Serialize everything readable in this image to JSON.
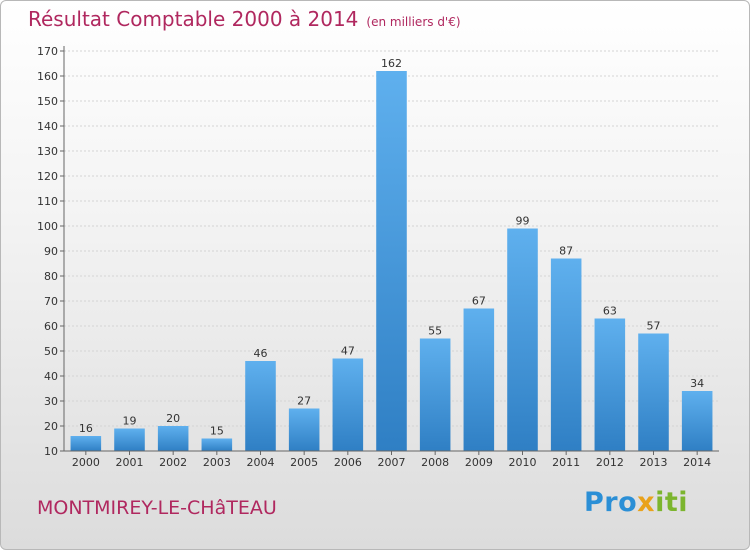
{
  "colors": {
    "title": "#b0285f",
    "bar_top": "#5fb0ee",
    "bar_bottom": "#2f7fc4"
  },
  "brand": {
    "logo_text": "Proxiti"
  },
  "chart_data": {
    "type": "bar",
    "title": "Résultat Comptable 2000 à 2014",
    "subtitle": "(en milliers d'€)",
    "categories": [
      "2000",
      "2001",
      "2002",
      "2003",
      "2004",
      "2005",
      "2006",
      "2007",
      "2008",
      "2009",
      "2010",
      "2011",
      "2012",
      "2013",
      "2014"
    ],
    "values": [
      16,
      19,
      20,
      15,
      46,
      27,
      47,
      162,
      55,
      67,
      99,
      87,
      63,
      57,
      34
    ],
    "yticks": [
      10,
      20,
      30,
      40,
      50,
      60,
      70,
      80,
      90,
      100,
      110,
      120,
      130,
      140,
      150,
      160,
      170
    ],
    "ylim": [
      10,
      170
    ],
    "xlabel": "",
    "ylabel": "",
    "location": "MONTMIREY-LE-CHâTEAU",
    "grid": true
  }
}
